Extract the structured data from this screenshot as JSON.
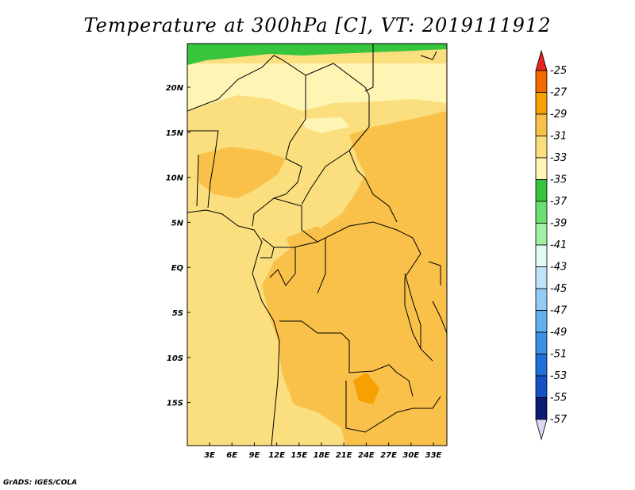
{
  "title": "Temperature at 300hPa [C], VT: 2019111912",
  "credit": "GrADS: IGES/COLA",
  "map": {
    "lon_ticks": [
      "3E",
      "6E",
      "9E",
      "12E",
      "15E",
      "18E",
      "21E",
      "24E",
      "27E",
      "30E",
      "33E"
    ],
    "lat_ticks": [
      "20N",
      "15N",
      "10N",
      "5N",
      "EQ",
      "5S",
      "10S",
      "15S"
    ]
  },
  "colorbar": {
    "labels": [
      "-25",
      "-27",
      "-29",
      "-31",
      "-33",
      "-35",
      "-37",
      "-39",
      "-41",
      "-43",
      "-45",
      "-47",
      "-49",
      "-51",
      "-53",
      "-55",
      "-57"
    ],
    "colors": [
      "#e8221e",
      "#f26a00",
      "#f6a101",
      "#f9c14a",
      "#fbdf7f",
      "#fef5b4",
      "#36c53c",
      "#6be072",
      "#a3f0a5",
      "#e0fbf0",
      "#bfe3f8",
      "#94cbf4",
      "#63aff0",
      "#3b8fe6",
      "#1e6fdc",
      "#1352c6",
      "#0b1a72",
      "#d7d8f3"
    ]
  }
}
